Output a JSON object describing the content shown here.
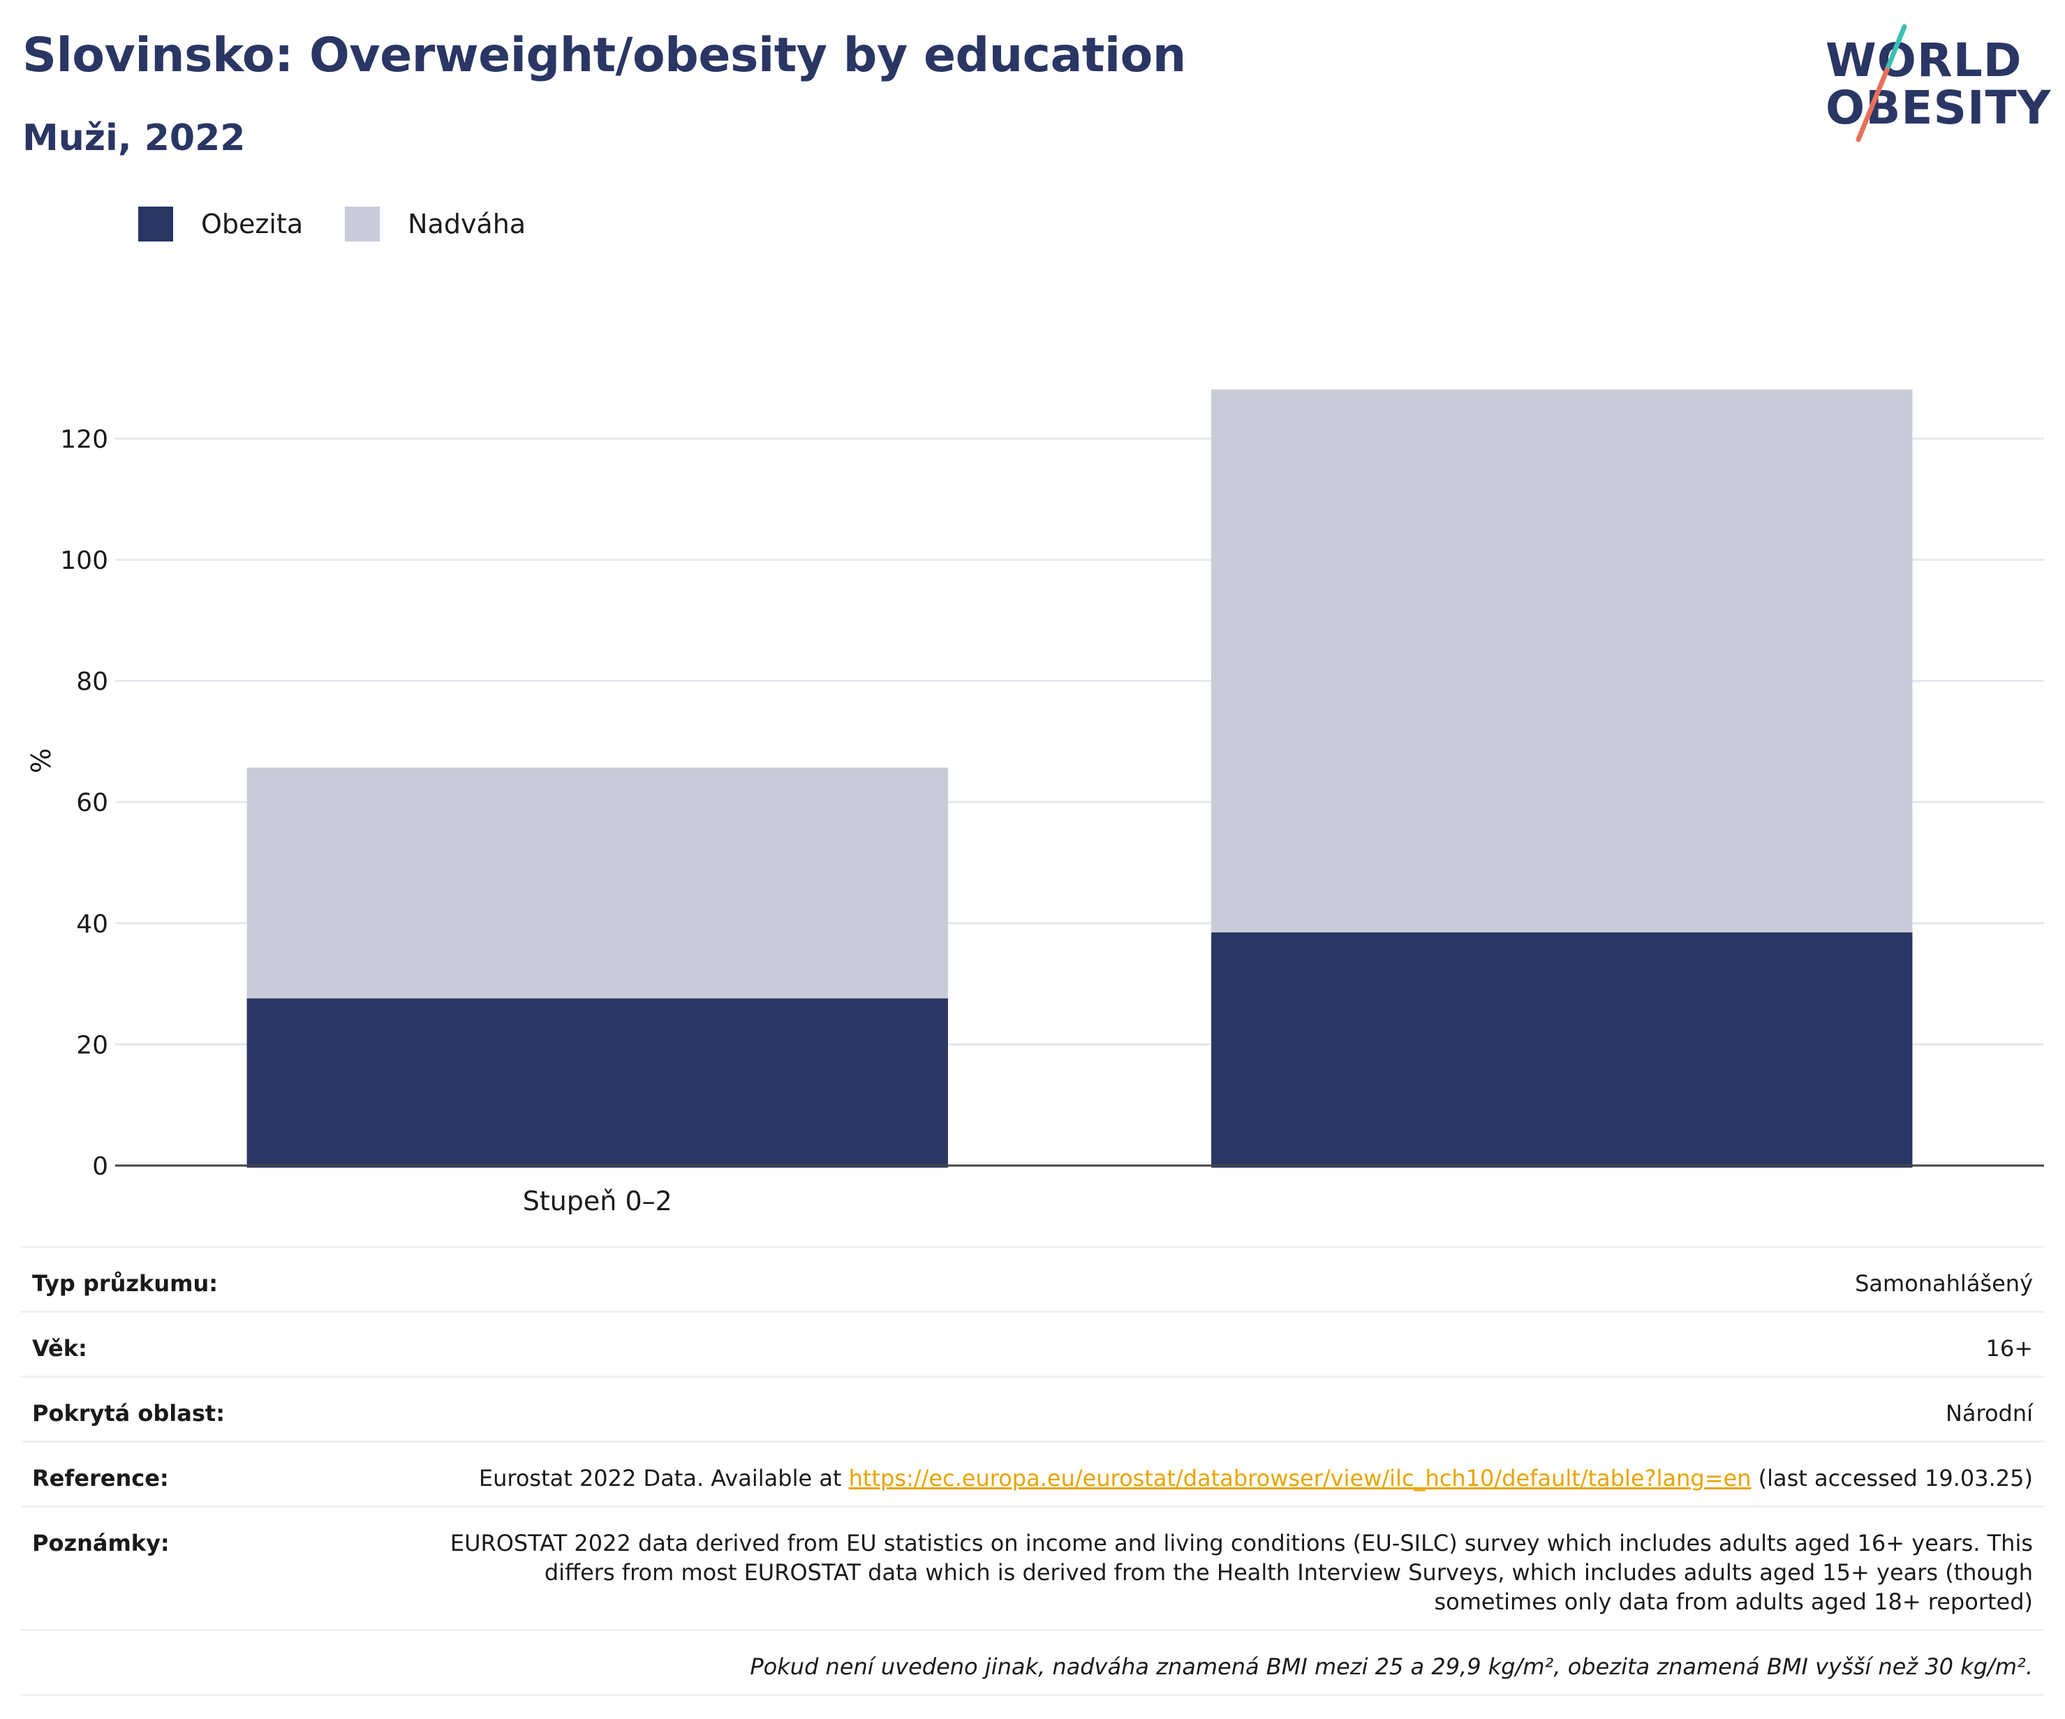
{
  "header": {
    "title": "Slovinsko: Overweight/obesity by education",
    "subtitle": "Muži, 2022"
  },
  "logo": {
    "line1": "WORLD",
    "line2": "OBESITY"
  },
  "colors": {
    "obesity": "#2a3664",
    "overweight": "#c9ccd8",
    "accent_teal": "#3cbfb4",
    "accent_coral": "#e8705a"
  },
  "legend": [
    {
      "label": "Obezita",
      "color": "#2a3664"
    },
    {
      "label": "Nadváha",
      "color": "#c9ccd8"
    }
  ],
  "chart_data": {
    "type": "bar",
    "stacked": true,
    "categories": [
      "Stupeň 0–2",
      ""
    ],
    "series": [
      {
        "name": "Obezita",
        "values": [
          27.6,
          38.5
        ]
      },
      {
        "name": "Nadváha",
        "values": [
          38.1,
          89.6
        ]
      }
    ],
    "ylabel": "%",
    "ylim": [
      0,
      130
    ],
    "yticks": [
      0,
      20,
      40,
      60,
      80,
      100,
      120
    ],
    "grid": true,
    "legend_position": "top-left"
  },
  "info": {
    "survey_label": "Typ průzkumu:",
    "survey_value": "Samonahlášený",
    "age_label": "Věk:",
    "age_value": "16+",
    "coverage_label": "Pokrytá oblast:",
    "coverage_value": "Národní",
    "reference_label": "Reference:",
    "reference_prefix": "Eurostat 2022 Data. Available at ",
    "reference_link": "https://ec.europa.eu/eurostat/databrowser/view/ilc_hch10/default/table?lang=en",
    "reference_suffix": " (last accessed 19.03.25)",
    "notes_label": "Poznámky:",
    "notes_value": "EUROSTAT 2022 data derived from EU statistics on income and living conditions (EU-SILC) survey which includes adults aged 16+ years. This differs from most EUROSTAT data which is derived from the Health Interview Surveys, which includes adults aged 15+ years (though sometimes only data from adults aged 18+ reported)",
    "footnote": "Pokud není uvedeno jinak, nadváha znamená BMI mezi 25 a 29,9 kg/m², obezita znamená BMI vyšší než 30 kg/m²."
  }
}
